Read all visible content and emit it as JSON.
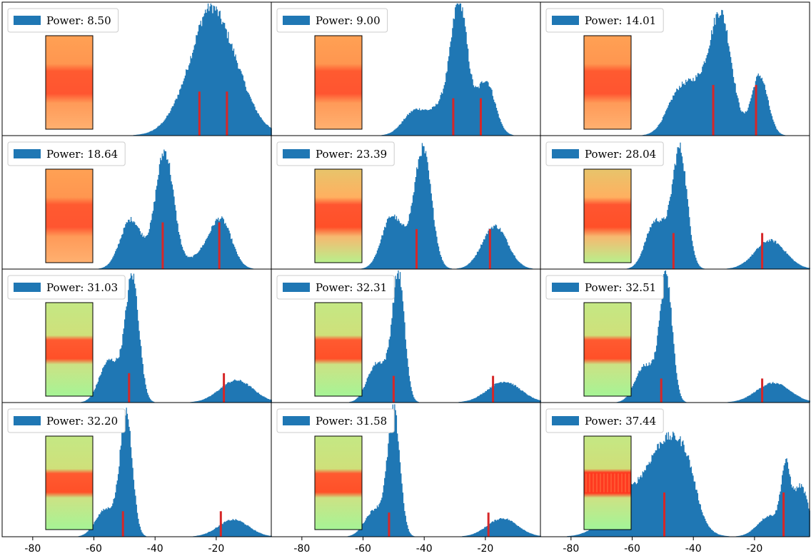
{
  "chart_data": {
    "type": "histogram-grid",
    "grid": {
      "rows": 4,
      "cols": 3
    },
    "bar_color": "#1f77b4",
    "marker_color": "#d62728",
    "legend_placement": "upper-left",
    "xlim": [
      -90,
      -2
    ],
    "xticks": [
      -80,
      -60,
      -40,
      -20
    ],
    "xtick_labels": [
      "-80",
      "-60",
      "-40",
      "-20"
    ],
    "yticks": "none",
    "panels": [
      {
        "legend": "Power: 8.50",
        "inset": "orange",
        "peaks": [
          {
            "mu": -21,
            "sd": 8,
            "h": 0.9
          },
          {
            "mu": -23,
            "sd": 3,
            "h": 0.1
          }
        ],
        "markers": [
          {
            "x": -25.5,
            "h": 0.33
          },
          {
            "x": -16.5,
            "h": 0.33
          }
        ]
      },
      {
        "legend": "Power: 9.00",
        "inset": "orange",
        "peaks": [
          {
            "mu": -43,
            "sd": 4,
            "h": 0.19
          },
          {
            "mu": -28.5,
            "sd": 2.6,
            "h": 0.9
          },
          {
            "mu": -20,
            "sd": 3,
            "h": 0.42
          },
          {
            "mu": -33,
            "sd": 4,
            "h": 0.25
          }
        ],
        "markers": [
          {
            "x": -30.5,
            "h": 0.28
          },
          {
            "x": -21.5,
            "h": 0.28
          }
        ]
      },
      {
        "legend": "Power: 14.01",
        "inset": "orange",
        "peaks": [
          {
            "mu": -45,
            "sd": 4,
            "h": 0.3
          },
          {
            "mu": -31,
            "sd": 3.5,
            "h": 0.88
          },
          {
            "mu": -18.5,
            "sd": 2.7,
            "h": 0.46
          },
          {
            "mu": -38,
            "sd": 4,
            "h": 0.3
          }
        ],
        "markers": [
          {
            "x": -33.5,
            "h": 0.38
          },
          {
            "x": -19.5,
            "h": 0.38
          }
        ]
      },
      {
        "legend": "Power: 18.64",
        "inset": "orange",
        "peaks": [
          {
            "mu": -48,
            "sd": 3.5,
            "h": 0.38
          },
          {
            "mu": -37,
            "sd": 3,
            "h": 0.9
          },
          {
            "mu": -18.5,
            "sd": 3.5,
            "h": 0.36
          },
          {
            "mu": -25,
            "sd": 4,
            "h": 0.1
          }
        ],
        "markers": [
          {
            "x": -37.5,
            "h": 0.35
          },
          {
            "x": -19,
            "h": 0.35
          }
        ]
      },
      {
        "legend": "Power: 23.39",
        "inset": "mixed",
        "peaks": [
          {
            "mu": -51,
            "sd": 3.2,
            "h": 0.38
          },
          {
            "mu": -40.5,
            "sd": 2.8,
            "h": 0.9
          },
          {
            "mu": -17,
            "sd": 4.2,
            "h": 0.33
          },
          {
            "mu": -46,
            "sd": 3,
            "h": 0.1
          }
        ],
        "markers": [
          {
            "x": -42.5,
            "h": 0.3
          },
          {
            "x": -18.5,
            "h": 0.3
          }
        ]
      },
      {
        "legend": "Power: 28.04",
        "inset": "mixed",
        "peaks": [
          {
            "mu": -53,
            "sd": 3,
            "h": 0.33
          },
          {
            "mu": -44.5,
            "sd": 2.4,
            "h": 0.9
          },
          {
            "mu": -15,
            "sd": 5,
            "h": 0.22
          },
          {
            "mu": -49,
            "sd": 2.5,
            "h": 0.12
          }
        ],
        "markers": [
          {
            "x": -46.5,
            "h": 0.27
          },
          {
            "x": -17.5,
            "h": 0.27
          }
        ]
      },
      {
        "legend": "Power: 31.03",
        "inset": "green",
        "peaks": [
          {
            "mu": -55.5,
            "sd": 3,
            "h": 0.3
          },
          {
            "mu": -47.5,
            "sd": 2.2,
            "h": 0.93
          },
          {
            "mu": -13.5,
            "sd": 5.5,
            "h": 0.17
          },
          {
            "mu": -51,
            "sd": 2.5,
            "h": 0.1
          }
        ],
        "markers": [
          {
            "x": -48.5,
            "h": 0.22
          },
          {
            "x": -17.5,
            "h": 0.22
          }
        ]
      },
      {
        "legend": "Power: 32.31",
        "inset": "green",
        "peaks": [
          {
            "mu": -56,
            "sd": 3,
            "h": 0.27
          },
          {
            "mu": -48.5,
            "sd": 2,
            "h": 0.95
          },
          {
            "mu": -14,
            "sd": 5.5,
            "h": 0.16
          },
          {
            "mu": -52,
            "sd": 2.5,
            "h": 0.1
          }
        ],
        "markers": [
          {
            "x": -50,
            "h": 0.2
          },
          {
            "x": -17.5,
            "h": 0.2
          }
        ]
      },
      {
        "legend": "Power: 32.51",
        "inset": "green",
        "peaks": [
          {
            "mu": -56.5,
            "sd": 3,
            "h": 0.25
          },
          {
            "mu": -49,
            "sd": 2,
            "h": 0.95
          },
          {
            "mu": -14,
            "sd": 5.5,
            "h": 0.15
          },
          {
            "mu": -52.5,
            "sd": 2.5,
            "h": 0.1
          }
        ],
        "markers": [
          {
            "x": -50.5,
            "h": 0.18
          },
          {
            "x": -17.5,
            "h": 0.18
          }
        ]
      },
      {
        "legend": "Power: 32.20",
        "inset": "green",
        "peaks": [
          {
            "mu": -57,
            "sd": 3,
            "h": 0.18
          },
          {
            "mu": -49.5,
            "sd": 2,
            "h": 0.92
          },
          {
            "mu": -14.5,
            "sd": 5,
            "h": 0.13
          },
          {
            "mu": -53,
            "sd": 2.5,
            "h": 0.08
          }
        ],
        "markers": [
          {
            "x": -50.5,
            "h": 0.19
          },
          {
            "x": -18.5,
            "h": 0.19
          }
        ]
      },
      {
        "legend": "Power: 31.58",
        "inset": "green",
        "peaks": [
          {
            "mu": -57,
            "sd": 3,
            "h": 0.17
          },
          {
            "mu": -50,
            "sd": 2,
            "h": 0.93
          },
          {
            "mu": -14.5,
            "sd": 5,
            "h": 0.14
          },
          {
            "mu": -53.5,
            "sd": 2.5,
            "h": 0.08
          }
        ],
        "markers": [
          {
            "x": -51.5,
            "h": 0.18
          },
          {
            "x": -19,
            "h": 0.18
          }
        ]
      },
      {
        "legend": "Power: 37.44",
        "inset": "green-dark",
        "peaks": [
          {
            "mu": -48,
            "sd": 6,
            "h": 0.68
          },
          {
            "mu": -61,
            "sd": 7,
            "h": 0.3
          },
          {
            "mu": -42,
            "sd": 3,
            "h": 0.2
          },
          {
            "mu": -10,
            "sd": 1.5,
            "h": 0.45
          },
          {
            "mu": -5,
            "sd": 2.5,
            "h": 0.38
          },
          {
            "mu": -15,
            "sd": 4,
            "h": 0.16
          }
        ],
        "markers": [
          {
            "x": -49.5,
            "h": 0.33
          },
          {
            "x": -10.5,
            "h": 0.33
          }
        ]
      }
    ]
  }
}
